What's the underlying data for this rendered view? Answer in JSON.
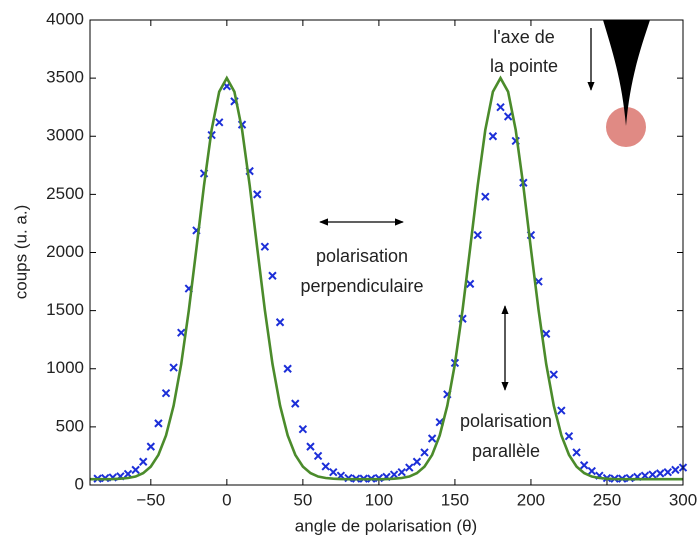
{
  "chart_data": {
    "type": "scatter-line",
    "xlabel": "angle de polarisation (θ)",
    "ylabel": "coups (u. a.)",
    "xlim": [
      -90,
      300
    ],
    "ylim": [
      0,
      4000
    ],
    "xticks": [
      {
        "value": -50,
        "label": "−50"
      },
      0,
      50,
      100,
      150,
      200,
      250,
      300
    ],
    "yticks": [
      0,
      500,
      1000,
      1500,
      2000,
      2500,
      3000,
      3500,
      4000
    ],
    "annotations": {
      "tip_axis": [
        "l'axe de",
        "la pointe"
      ],
      "perpendicular": [
        "polarisation",
        "perpendiculaire"
      ],
      "parallel": [
        "polarisation",
        "parallèle"
      ]
    },
    "series": [
      {
        "type": "scatter",
        "color": "#1c2fd8",
        "x": [
          -85,
          -80,
          -75,
          -70,
          -65,
          -60,
          -55,
          -50,
          -45,
          -40,
          -35,
          -30,
          -25,
          -20,
          -15,
          -10,
          -5,
          0,
          5,
          10,
          15,
          20,
          25,
          30,
          35,
          40,
          45,
          50,
          55,
          60,
          65,
          70,
          75,
          80,
          85,
          90,
          95,
          100,
          105,
          110,
          115,
          120,
          125,
          130,
          135,
          140,
          145,
          150,
          155,
          160,
          165,
          170,
          175,
          180,
          185,
          190,
          195,
          200,
          205,
          210,
          215,
          220,
          225,
          230,
          235,
          240,
          245,
          250,
          255,
          260,
          265,
          270,
          275,
          280,
          285,
          290,
          295,
          300
        ],
        "values": [
          55,
          60,
          65,
          75,
          95,
          130,
          200,
          330,
          530,
          790,
          1010,
          1310,
          1690,
          2190,
          2680,
          3010,
          3120,
          3430,
          3300,
          3100,
          2700,
          2500,
          2050,
          1800,
          1400,
          1000,
          700,
          480,
          330,
          250,
          160,
          110,
          80,
          60,
          55,
          55,
          55,
          60,
          70,
          90,
          110,
          150,
          200,
          280,
          400,
          540,
          780,
          1050,
          1430,
          1730,
          2150,
          2480,
          3000,
          3250,
          3170,
          2960,
          2600,
          2150,
          1750,
          1300,
          950,
          640,
          420,
          280,
          170,
          120,
          80,
          60,
          55,
          55,
          60,
          70,
          80,
          90,
          100,
          110,
          130,
          150
        ]
      },
      {
        "type": "line",
        "color": "#4b8b2b",
        "x": [
          -90,
          -85,
          -80,
          -75,
          -70,
          -65,
          -60,
          -55,
          -50,
          -45,
          -40,
          -35,
          -30,
          -25,
          -20,
          -15,
          -10,
          -5,
          0,
          5,
          10,
          15,
          20,
          25,
          30,
          35,
          40,
          45,
          50,
          55,
          60,
          65,
          70,
          75,
          80,
          85,
          90,
          95,
          100,
          105,
          110,
          115,
          120,
          125,
          130,
          135,
          140,
          145,
          150,
          155,
          160,
          165,
          170,
          175,
          180,
          185,
          190,
          195,
          200,
          205,
          210,
          215,
          220,
          225,
          230,
          235,
          240,
          245,
          250,
          255,
          260,
          265,
          270,
          275,
          280,
          285,
          290,
          295,
          300
        ],
        "values": [
          50,
          50,
          50,
          51,
          54,
          60,
          73,
          102,
          158,
          259,
          426,
          682,
          1041,
          1502,
          2033,
          2576,
          3055,
          3383,
          3500,
          3383,
          3055,
          2576,
          2033,
          1502,
          1041,
          682,
          426,
          259,
          158,
          102,
          73,
          60,
          54,
          51,
          50,
          50,
          50,
          50,
          50,
          51,
          54,
          60,
          73,
          102,
          158,
          259,
          426,
          682,
          1041,
          1502,
          2033,
          2576,
          3055,
          3383,
          3500,
          3383,
          3055,
          2576,
          2033,
          1502,
          1041,
          682,
          426,
          259,
          158,
          102,
          73,
          60,
          54,
          51,
          50,
          50,
          50,
          50,
          50,
          50,
          50,
          50,
          50
        ]
      }
    ]
  }
}
